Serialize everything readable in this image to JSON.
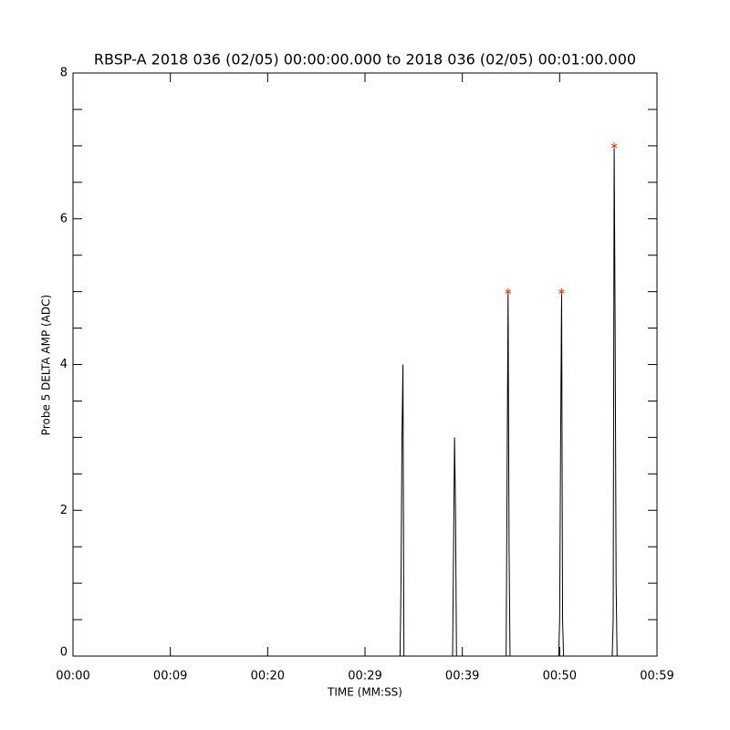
{
  "chart_data": {
    "type": "line",
    "title": "RBSP-A 2018 036 (02/05) 00:00:00.000 to 2018 036 (02/05) 00:01:00.000",
    "xlabel": "TIME (MM:SS)",
    "ylabel": "Probe 5 DELTA AMP (ADC)",
    "xlim": [
      0,
      60
    ],
    "ylim": [
      0,
      8
    ],
    "xticks": [
      {
        "value": 0,
        "label": "00:00"
      },
      {
        "value": 10,
        "label": "00:09"
      },
      {
        "value": 20,
        "label": "00:20"
      },
      {
        "value": 30,
        "label": "00:29"
      },
      {
        "value": 40,
        "label": "00:39"
      },
      {
        "value": 50,
        "label": "00:50"
      },
      {
        "value": 60,
        "label": "00:59"
      }
    ],
    "yticks": [
      0,
      2,
      4,
      6,
      8
    ],
    "yminor": 4,
    "series": [
      {
        "color": "#000000",
        "marker": "none",
        "x": [
          0,
          33.6,
          33.7,
          33.8,
          33.9,
          34.0,
          39.0,
          39.1,
          39.2,
          39.3,
          39.4,
          44.5,
          44.6,
          44.7,
          44.8,
          44.9,
          49.9,
          50.0,
          50.1,
          50.2,
          50.3,
          50.4,
          55.4,
          55.5,
          55.6,
          55.7,
          55.8,
          55.9,
          60
        ],
        "values": [
          0,
          0,
          1,
          3,
          4,
          0,
          0,
          1.5,
          3,
          2,
          0,
          0,
          2.5,
          5,
          1.5,
          0,
          0,
          0.5,
          3,
          5,
          0.5,
          0,
          0,
          0.5,
          7,
          4.5,
          1,
          0,
          0
        ]
      },
      {
        "color": "#ff2000",
        "marker": "asterisk",
        "x": [
          44.7,
          50.2,
          55.6
        ],
        "values": [
          5,
          5,
          7
        ]
      }
    ]
  }
}
